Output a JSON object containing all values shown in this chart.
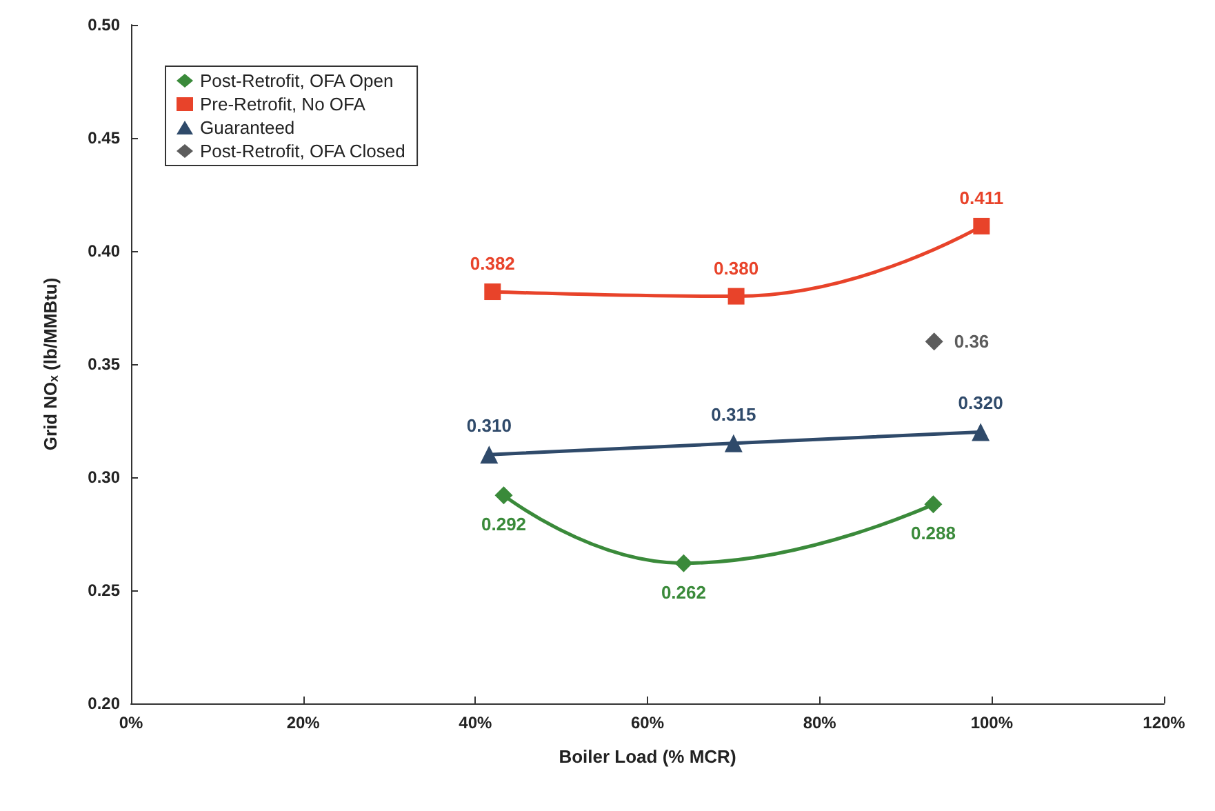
{
  "chart_data": {
    "type": "line",
    "xlabel": "Boiler Load (% MCR)",
    "ylabel": "Grid NOₓ (lb/MMBtu)",
    "xlim": [
      0,
      120
    ],
    "xticks": [
      {
        "value": 0,
        "label": "0%"
      },
      {
        "value": 20,
        "label": "20%"
      },
      {
        "value": 40,
        "label": "40%"
      },
      {
        "value": 60,
        "label": "60%"
      },
      {
        "value": 80,
        "label": "80%"
      },
      {
        "value": 100,
        "label": "100%"
      },
      {
        "value": 120,
        "label": "120%"
      }
    ],
    "ylim": [
      0.2,
      0.5
    ],
    "yticks": [
      {
        "value": 0.2,
        "label": "0.20"
      },
      {
        "value": 0.25,
        "label": "0.25"
      },
      {
        "value": 0.3,
        "label": "0.30"
      },
      {
        "value": 0.35,
        "label": "0.35"
      },
      {
        "value": 0.4,
        "label": "0.40"
      },
      {
        "value": 0.45,
        "label": "0.45"
      },
      {
        "value": 0.5,
        "label": "0.50"
      }
    ],
    "grid": false,
    "legend": "top left",
    "series": [
      {
        "name": "Post-Retrofit, OFA Open",
        "color": "#3a8a3a",
        "marker": "diamond",
        "x": [
          43.3,
          64.2,
          93.2
        ],
        "values": [
          0.292,
          0.262,
          0.288
        ],
        "value_labels": [
          "0.292",
          "0.262",
          "0.288"
        ]
      },
      {
        "name": "Pre-Retrofit, No OFA",
        "color": "#e8432a",
        "marker": "square",
        "x": [
          42,
          70.3,
          98.8
        ],
        "values": [
          0.382,
          0.38,
          0.411
        ],
        "value_labels": [
          "0.382",
          "0.380",
          "0.411"
        ]
      },
      {
        "name": "Guaranteed",
        "color": "#2f4a6a",
        "marker": "triangle",
        "x": [
          41.6,
          70,
          98.7
        ],
        "values": [
          0.31,
          0.315,
          0.32
        ],
        "value_labels": [
          "0.310",
          "0.315",
          "0.320"
        ]
      },
      {
        "name": "Post-Retrofit, OFA Closed",
        "color": "#333333",
        "marker": "diamond",
        "type": "scatter",
        "x": [
          93.3
        ],
        "values": [
          0.36
        ],
        "value_labels": [
          "0.36"
        ]
      }
    ]
  }
}
